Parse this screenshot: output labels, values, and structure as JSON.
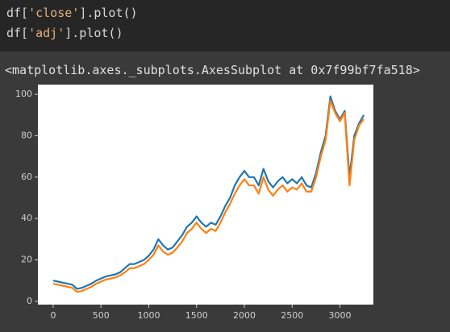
{
  "code": {
    "lines": [
      [
        "df[",
        "'close'",
        "].plot()"
      ],
      [
        "df[",
        "'adj'",
        "].plot()"
      ]
    ]
  },
  "output": "<matplotlib.axes._subplots.AxesSubplot at 0x7f99bf7fa518>",
  "chart_data": {
    "type": "line",
    "x": [
      0,
      50,
      100,
      150,
      200,
      250,
      300,
      350,
      400,
      450,
      500,
      550,
      600,
      650,
      700,
      750,
      800,
      850,
      900,
      950,
      1000,
      1050,
      1100,
      1150,
      1200,
      1250,
      1300,
      1350,
      1400,
      1450,
      1500,
      1550,
      1600,
      1650,
      1700,
      1750,
      1800,
      1850,
      1900,
      1950,
      2000,
      2050,
      2100,
      2150,
      2200,
      2250,
      2300,
      2350,
      2400,
      2450,
      2500,
      2550,
      2600,
      2650,
      2700,
      2750,
      2800,
      2850,
      2900,
      2950,
      3000,
      3050,
      3100,
      3150,
      3200,
      3250
    ],
    "series": [
      {
        "name": "close",
        "color": "#1f77b4",
        "values": [
          10,
          9.5,
          9,
          8.5,
          8,
          6,
          6.5,
          7.5,
          8.5,
          10,
          11,
          12,
          12.5,
          13,
          14,
          16,
          18,
          18,
          19,
          20,
          22,
          25,
          30,
          27,
          25,
          26,
          29,
          32,
          36,
          38,
          41,
          38,
          36,
          38,
          37,
          41,
          46,
          50,
          56,
          60,
          63,
          60,
          60,
          56,
          64,
          58,
          55,
          58,
          60,
          57,
          59,
          57,
          60,
          56,
          55,
          62,
          72,
          80,
          99,
          92,
          88,
          92,
          60,
          80,
          86,
          90
        ]
      },
      {
        "name": "adj",
        "color": "#ff7f0e",
        "values": [
          8.5,
          8,
          7.5,
          7,
          6.5,
          4.5,
          5,
          6,
          7,
          8.5,
          9.5,
          10.5,
          11,
          11.5,
          12.5,
          14,
          16,
          16,
          17,
          18,
          20,
          22.5,
          27,
          24,
          22.5,
          23.5,
          26,
          29,
          33,
          35,
          38,
          35,
          33,
          35,
          34,
          38,
          43,
          47,
          52,
          56,
          59,
          56,
          56,
          52,
          60,
          54,
          51,
          54,
          56,
          53,
          55,
          54,
          57,
          53,
          53,
          60,
          70,
          78,
          97,
          91,
          87,
          91,
          56,
          78,
          85,
          88
        ]
      }
    ],
    "xlim": [
      -160,
      3350
    ],
    "ylim": [
      -1.6,
      104.7
    ],
    "xticks": [
      0,
      500,
      1000,
      1500,
      2000,
      2500,
      3000
    ],
    "yticks": [
      0,
      20,
      40,
      60,
      80,
      100
    ]
  }
}
